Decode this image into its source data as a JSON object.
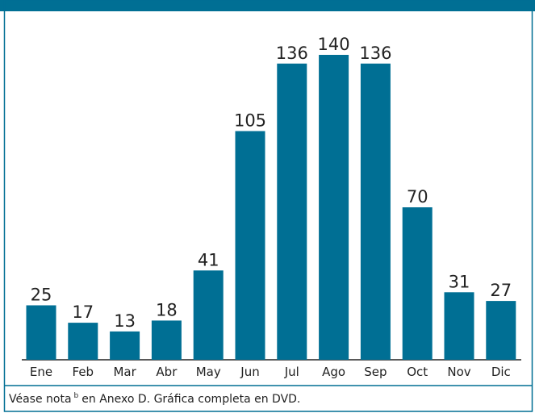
{
  "chart_data": {
    "type": "bar",
    "categories": [
      "Ene",
      "Feb",
      "Mar",
      "Abr",
      "May",
      "Jun",
      "Jul",
      "Ago",
      "Sep",
      "Oct",
      "Nov",
      "Dic"
    ],
    "values": [
      25,
      17,
      13,
      18,
      41,
      105,
      136,
      140,
      136,
      70,
      31,
      27
    ],
    "color": "#006f94",
    "note": {
      "before": "Véase nota",
      "superscript": "b",
      "after": "en Anexo D. Gráfica completa en DVD."
    }
  }
}
